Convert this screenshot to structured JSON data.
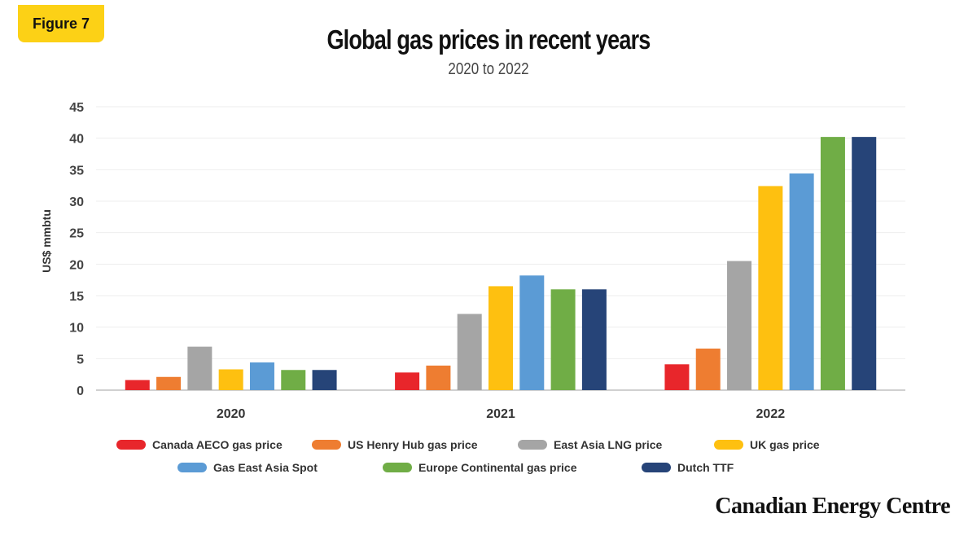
{
  "badge": "Figure 7",
  "brand": "Canadian Energy Centre",
  "chart_data": {
    "type": "bar",
    "title": "Global gas prices in recent years",
    "subtitle": "2020 to 2022",
    "xlabel": "",
    "ylabel": "US$ mmbtu",
    "ylim": [
      0,
      45
    ],
    "yticks": [
      0,
      5,
      10,
      15,
      20,
      25,
      30,
      35,
      40,
      45
    ],
    "grid": true,
    "legend": "bottom",
    "categories": [
      "2020",
      "2021",
      "2022"
    ],
    "series": [
      {
        "name": "Canada AECO gas price",
        "color": "#e8262b",
        "values": [
          1.6,
          2.8,
          4.1
        ]
      },
      {
        "name": "US Henry Hub gas price",
        "color": "#ee7d31",
        "values": [
          2.1,
          3.9,
          6.6
        ]
      },
      {
        "name": "East Asia LNG price",
        "color": "#a5a5a5",
        "values": [
          6.9,
          12.1,
          20.5
        ]
      },
      {
        "name": "UK gas price",
        "color": "#fec010",
        "values": [
          3.3,
          16.5,
          32.4
        ]
      },
      {
        "name": "Gas East Asia Spot",
        "color": "#5b9bd5",
        "values": [
          4.4,
          18.2,
          34.4
        ]
      },
      {
        "name": "Europe Continental gas price",
        "color": "#70ad46",
        "values": [
          3.2,
          16.0,
          40.2
        ]
      },
      {
        "name": "Dutch TTF",
        "color": "#264478",
        "values": [
          3.2,
          16.0,
          40.2
        ]
      }
    ]
  }
}
